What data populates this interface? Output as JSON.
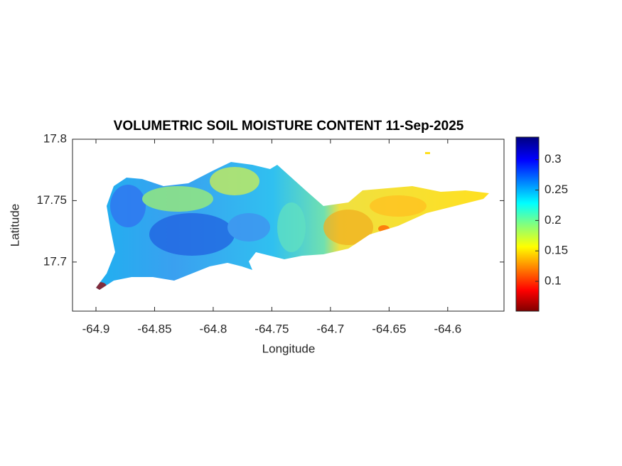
{
  "chart_data": {
    "type": "heatmap",
    "title": "VOLUMETRIC SOIL MOISTURE CONTENT 11-Sep-2025",
    "x_label": "Longitude",
    "y_label": "Latitude",
    "xlim": [
      -64.92,
      -64.552
    ],
    "xticks": [
      -64.9,
      -64.85,
      -64.8,
      -64.75,
      -64.7,
      -64.65,
      -64.6
    ],
    "ylim": [
      17.66,
      17.8
    ],
    "yticks": [
      17.7,
      17.75,
      17.8
    ],
    "colormap": "jet",
    "clim": [
      0.051,
      0.337
    ],
    "cticks": [
      0.1,
      0.15,
      0.2,
      0.25,
      0.3
    ]
  }
}
